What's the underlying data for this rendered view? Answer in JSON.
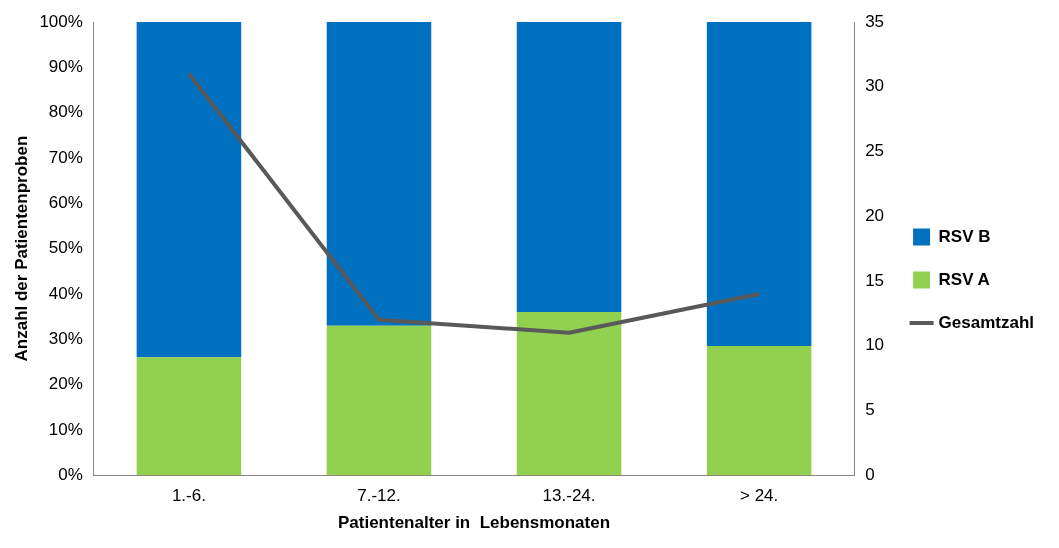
{
  "chart_data": {
    "type": "bar",
    "stacked": true,
    "xlabel": "Patientenalter in  Lebensmonaten",
    "ylabel": "Anzahl der Patientenproben",
    "categories": [
      "1.-6.",
      "7.-12.",
      "13.-24.",
      "> 24."
    ],
    "series": [
      {
        "name": "RSV A",
        "color": "#92d050",
        "values": [
          26,
          33,
          36,
          28.5
        ]
      },
      {
        "name": "RSV B",
        "color": "#0070c0",
        "values": [
          74,
          67,
          64,
          71.5
        ]
      },
      {
        "name": "Gesamtzahl",
        "type": "line",
        "axis": "y2",
        "color": "#595959",
        "values": [
          31,
          12,
          11,
          14
        ]
      }
    ],
    "ylim": [
      0,
      100
    ],
    "yticks": [
      {
        "value": 0,
        "label": "0%"
      },
      {
        "value": 10,
        "label": "10%"
      },
      {
        "value": 20,
        "label": "20%"
      },
      {
        "value": 30,
        "label": "30%"
      },
      {
        "value": 40,
        "label": "40%"
      },
      {
        "value": 50,
        "label": "50%"
      },
      {
        "value": 60,
        "label": "60%"
      },
      {
        "value": 70,
        "label": "70%"
      },
      {
        "value": 80,
        "label": "80%"
      },
      {
        "value": 90,
        "label": "90%"
      },
      {
        "value": 100,
        "label": "100%"
      }
    ],
    "y2lim": [
      0,
      35
    ],
    "y2ticks": [
      0,
      5,
      10,
      15,
      20,
      25,
      30,
      35
    ],
    "legend": "right"
  }
}
